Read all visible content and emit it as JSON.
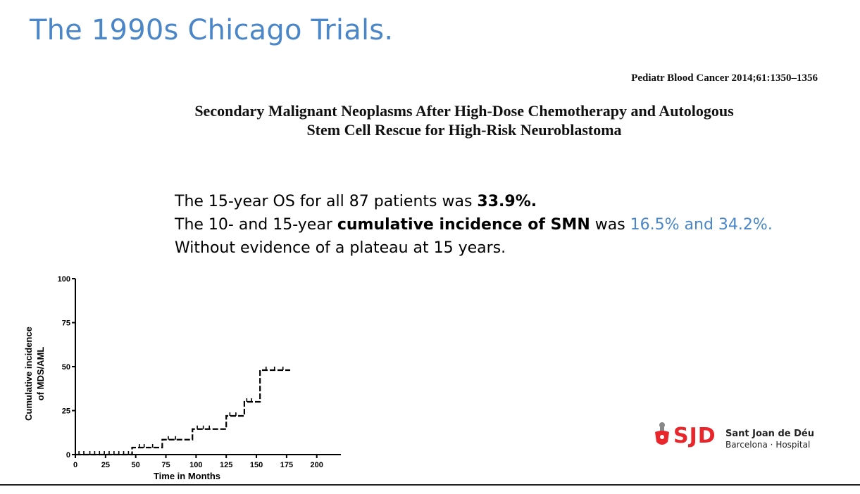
{
  "slide": {
    "title": "The 1990s Chicago Trials.",
    "journal_ref": "Pediatr Blood Cancer 2014;61:1350–1356",
    "article_title_line1": "Secondary Malignant Neoplasms After High-Dose Chemotherapy and Autologous",
    "article_title_line2": "Stem Cell Rescue for High-Risk Neuroblastoma",
    "line1_prefix": "The 15-year OS for all 87 patients was ",
    "line1_value": "33.9%.",
    "line2_prefix": "The 10- and 15-year ",
    "line2_bold": "cumulative incidence of SMN",
    "line2_mid": " was ",
    "line2_values": "16.5% and 34.2%.",
    "line3": "Without evidence of a plateau at 15 years."
  },
  "logo": {
    "letters": "SJD",
    "name": "Sant Joan de Déu",
    "subtitle": "Barcelona · Hospital",
    "accent_color": "#e8262b"
  },
  "chart_data": {
    "type": "line",
    "step": true,
    "xlabel": "Time in Months",
    "ylabel_line1": "Cumulative incidence",
    "ylabel_line2": "of MDS/AML",
    "xlim": [
      0,
      220
    ],
    "ylim": [
      0,
      100
    ],
    "xticks": [
      0,
      25,
      50,
      75,
      100,
      125,
      150,
      175,
      200
    ],
    "yticks": [
      0,
      25,
      50,
      75,
      100
    ],
    "series": [
      {
        "x": [
          0,
          47,
          72,
          97,
          125,
          140,
          153,
          178
        ],
        "y": [
          0,
          4,
          8.5,
          14.5,
          22,
          30,
          48,
          48
        ]
      }
    ],
    "censored": [
      {
        "x": 3,
        "y": 0
      },
      {
        "x": 7,
        "y": 0
      },
      {
        "x": 12,
        "y": 0
      },
      {
        "x": 16,
        "y": 0
      },
      {
        "x": 20,
        "y": 0
      },
      {
        "x": 24,
        "y": 0
      },
      {
        "x": 28,
        "y": 0
      },
      {
        "x": 32,
        "y": 0
      },
      {
        "x": 36,
        "y": 0
      },
      {
        "x": 40,
        "y": 0
      },
      {
        "x": 44,
        "y": 0
      },
      {
        "x": 53,
        "y": 4
      },
      {
        "x": 57,
        "y": 4
      },
      {
        "x": 64,
        "y": 4
      },
      {
        "x": 77,
        "y": 8.5
      },
      {
        "x": 83,
        "y": 8.5
      },
      {
        "x": 101,
        "y": 14.5
      },
      {
        "x": 106,
        "y": 14.5
      },
      {
        "x": 111,
        "y": 14.5
      },
      {
        "x": 128,
        "y": 22
      },
      {
        "x": 133,
        "y": 22
      },
      {
        "x": 142,
        "y": 30
      },
      {
        "x": 146,
        "y": 30
      },
      {
        "x": 158,
        "y": 48
      },
      {
        "x": 165,
        "y": 48
      },
      {
        "x": 172,
        "y": 48
      }
    ],
    "grid": false
  }
}
